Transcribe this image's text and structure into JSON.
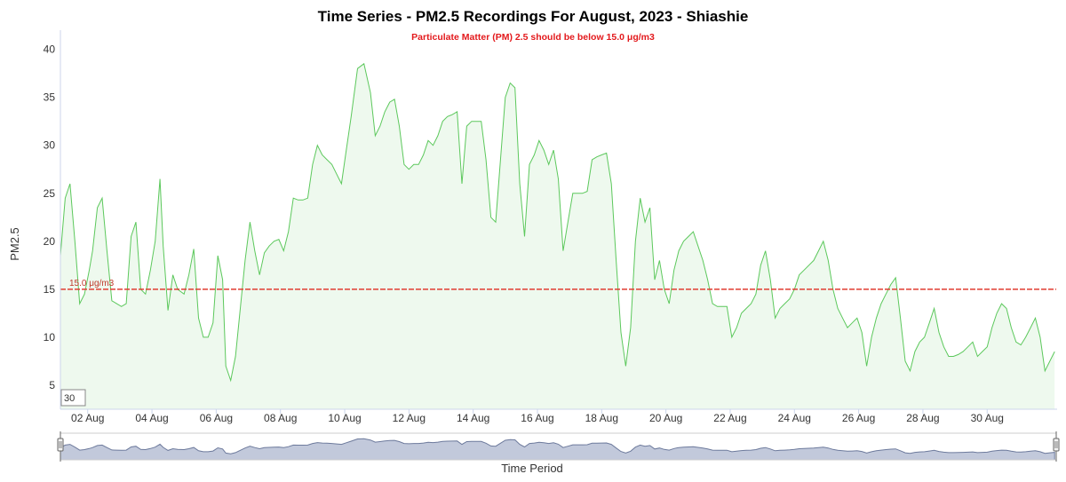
{
  "chart_data": {
    "type": "area",
    "title": "Time Series - PM2.5 Recordings For August, 2023 - Shiashie",
    "subtitle": "Particulate Matter (PM) 2.5 should be below 15.0 μg/m3",
    "ylabel": "PM2.5",
    "xlabel": "Time Period",
    "ylim": [
      2.5,
      42
    ],
    "xlim": [
      1.15,
      32.15
    ],
    "y_ticks": [
      5,
      10,
      15,
      20,
      25,
      30,
      35,
      40
    ],
    "x_ticks": [
      {
        "day": 2,
        "label": "02 Aug"
      },
      {
        "day": 4,
        "label": "04 Aug"
      },
      {
        "day": 6,
        "label": "06 Aug"
      },
      {
        "day": 8,
        "label": "08 Aug"
      },
      {
        "day": 10,
        "label": "10 Aug"
      },
      {
        "day": 12,
        "label": "12 Aug"
      },
      {
        "day": 14,
        "label": "14 Aug"
      },
      {
        "day": 16,
        "label": "16 Aug"
      },
      {
        "day": 18,
        "label": "18 Aug"
      },
      {
        "day": 20,
        "label": "20 Aug"
      },
      {
        "day": 22,
        "label": "22 Aug"
      },
      {
        "day": 24,
        "label": "24 Aug"
      },
      {
        "day": 26,
        "label": "26 Aug"
      },
      {
        "day": 28,
        "label": "28 Aug"
      },
      {
        "day": 30,
        "label": "30 Aug"
      }
    ],
    "reference_line": {
      "value": 15.0,
      "label": "15.0 μg/m3",
      "color": "#e03c31"
    },
    "series": [
      {
        "color": "#5cc85c",
        "fill": "#eef9ee",
        "x": [
          1.15,
          1.3,
          1.45,
          1.6,
          1.75,
          1.9,
          2.05,
          2.15,
          2.3,
          2.45,
          2.6,
          2.75,
          2.9,
          3.05,
          3.2,
          3.35,
          3.5,
          3.65,
          3.8,
          3.95,
          4.1,
          4.25,
          4.35,
          4.5,
          4.65,
          4.8,
          5.0,
          5.15,
          5.3,
          5.45,
          5.6,
          5.75,
          5.9,
          6.05,
          6.2,
          6.3,
          6.45,
          6.6,
          6.75,
          6.9,
          7.05,
          7.2,
          7.35,
          7.5,
          7.65,
          7.8,
          7.95,
          8.1,
          8.25,
          8.4,
          8.55,
          8.7,
          8.85,
          9.0,
          9.15,
          9.3,
          9.45,
          9.6,
          9.75,
          9.9,
          10.05,
          10.2,
          10.4,
          10.6,
          10.8,
          10.95,
          11.1,
          11.25,
          11.4,
          11.55,
          11.7,
          11.85,
          12.0,
          12.15,
          12.3,
          12.45,
          12.6,
          12.75,
          12.9,
          13.05,
          13.2,
          13.35,
          13.5,
          13.65,
          13.8,
          13.95,
          14.1,
          14.25,
          14.4,
          14.55,
          14.7,
          14.85,
          15.0,
          15.15,
          15.3,
          15.45,
          15.6,
          15.75,
          15.9,
          16.05,
          16.2,
          16.35,
          16.5,
          16.65,
          16.8,
          16.95,
          17.1,
          17.25,
          17.4,
          17.55,
          17.7,
          17.85,
          18.0,
          18.15,
          18.3,
          18.45,
          18.6,
          18.75,
          18.9,
          19.05,
          19.2,
          19.35,
          19.5,
          19.65,
          19.8,
          19.95,
          20.1,
          20.25,
          20.4,
          20.55,
          20.7,
          20.85,
          21.0,
          21.15,
          21.3,
          21.45,
          21.6,
          21.75,
          21.9,
          22.05,
          22.2,
          22.35,
          22.5,
          22.65,
          22.8,
          22.95,
          23.1,
          23.25,
          23.4,
          23.55,
          23.7,
          23.85,
          24.0,
          24.15,
          24.3,
          24.45,
          24.6,
          24.75,
          24.9,
          25.05,
          25.2,
          25.35,
          25.5,
          25.65,
          25.8,
          25.95,
          26.1,
          26.25,
          26.4,
          26.55,
          26.7,
          26.85,
          27.0,
          27.15,
          27.3,
          27.45,
          27.6,
          27.75,
          27.9,
          28.05,
          28.2,
          28.35,
          28.5,
          28.65,
          28.8,
          28.95,
          29.1,
          29.25,
          29.4,
          29.55,
          29.7,
          29.85,
          30.0,
          30.15,
          30.3,
          30.45,
          30.6,
          30.75,
          30.9,
          31.05,
          31.2,
          31.35,
          31.5,
          31.65,
          31.8,
          31.95,
          32.1
        ],
        "values": [
          18.5,
          24.5,
          26.0,
          20.0,
          13.5,
          14.5,
          17.0,
          19.0,
          23.5,
          24.5,
          19.0,
          13.8,
          13.5,
          13.2,
          13.5,
          20.5,
          22.0,
          15.0,
          14.5,
          17.0,
          20.0,
          26.5,
          19.5,
          12.8,
          16.5,
          15.0,
          14.5,
          16.5,
          19.2,
          12.0,
          10.0,
          10.0,
          11.5,
          18.5,
          16.0,
          7.0,
          5.5,
          8.0,
          13.0,
          18.0,
          22.0,
          19.0,
          16.5,
          18.8,
          19.5,
          20.0,
          20.2,
          19.0,
          21.0,
          24.5,
          24.3,
          24.3,
          24.5,
          28.0,
          30.0,
          29.0,
          28.5,
          28.0,
          27.0,
          26.0,
          29.5,
          33.0,
          38.0,
          38.5,
          35.5,
          31.0,
          32.0,
          33.5,
          34.5,
          34.8,
          32.0,
          28.0,
          27.5,
          28.0,
          28.0,
          29.0,
          30.5,
          30.0,
          31.0,
          32.5,
          33.0,
          33.2,
          33.5,
          26.0,
          32.0,
          32.5,
          32.5,
          32.5,
          28.5,
          22.5,
          22.0,
          28.5,
          35.0,
          36.5,
          36.0,
          26.0,
          20.5,
          28.0,
          29.0,
          30.5,
          29.5,
          28.0,
          29.5,
          26.5,
          19.0,
          22.0,
          25.0,
          25.0,
          25.0,
          25.2,
          28.5,
          28.8,
          29.0,
          29.2,
          26.0,
          18.0,
          10.5,
          7.0,
          11.0,
          20.0,
          24.5,
          22.0,
          23.5,
          16.0,
          18.0,
          15.0,
          13.5,
          17.0,
          19.0,
          20.0,
          20.5,
          21.0,
          19.5,
          18.0,
          16.0,
          13.5,
          13.2,
          13.2,
          13.2,
          10.0,
          11.0,
          12.5,
          13.0,
          13.5,
          14.5,
          17.5,
          19.0,
          16.0,
          12.0,
          13.0,
          13.5,
          14.0,
          15.0,
          16.5,
          17.0,
          17.5,
          18.0,
          19.0,
          20.0,
          18.0,
          15.0,
          13.0,
          12.0,
          11.0,
          11.5,
          12.0,
          10.5,
          7.0,
          10.0,
          12.0,
          13.5,
          14.5,
          15.5,
          16.2,
          12.0,
          7.5,
          6.5,
          8.5,
          9.5,
          10.0,
          11.5,
          13.0,
          10.5,
          9.0,
          8.0,
          8.0,
          8.2,
          8.5,
          9.0,
          9.5,
          8.0,
          8.5,
          9.0,
          11.0,
          12.5,
          13.5,
          13.0,
          11.0,
          9.5,
          9.2,
          10.0,
          11.0,
          12.0,
          10.0,
          6.5,
          7.5,
          8.5
        ]
      }
    ],
    "grid": false,
    "legend": "none",
    "range_input": "30",
    "navigator": true
  }
}
